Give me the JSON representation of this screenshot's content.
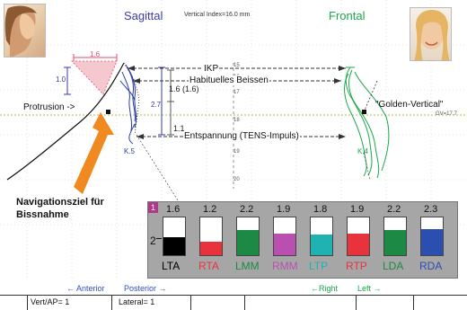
{
  "header": {
    "sagittal_label": "Sagittal",
    "frontal_label": "Frontal",
    "vertical_index": "Vertical Index=16.0 mm"
  },
  "measurements": {
    "top_width": "1.6",
    "left_height": "1.0",
    "mid_height": "2.7",
    "right_height_1": "1.6 (1.6)",
    "right_height_2": "1.1"
  },
  "annotations": {
    "ikp": "IKP",
    "habit": "Habituelles Beissen",
    "entspannung": "Entspannung (TENS-Impuls)",
    "protrusion": "Protrusion ->",
    "golden_vertical": "\"Golden-Vertical\"",
    "gv_value": "GV=17.7",
    "k5": "K.5",
    "k4": "K.4",
    "nav_target": "Navigationsziel für Bissnahme"
  },
  "scale_ticks": [
    "15",
    "16",
    "17",
    "18",
    "19",
    "20"
  ],
  "panel": {
    "index": "1",
    "axis_mark": "2",
    "muscles": [
      {
        "label": "LTA",
        "value": "1.6",
        "fill": 0.48,
        "color": "#000000",
        "text_color": "#000000"
      },
      {
        "label": "RTA",
        "value": "1.2",
        "fill": 0.36,
        "color": "#e8323c",
        "text_color": "#e8323c"
      },
      {
        "label": "LMM",
        "value": "2.2",
        "fill": 0.66,
        "color": "#1c8a45",
        "text_color": "#1c8a45"
      },
      {
        "label": "RMM",
        "value": "1.9",
        "fill": 0.57,
        "color": "#b94fb0",
        "text_color": "#b94fb0"
      },
      {
        "label": "LTP",
        "value": "1.8",
        "fill": 0.54,
        "color": "#1fb2b0",
        "text_color": "#1fb2b0"
      },
      {
        "label": "RTP",
        "value": "1.9",
        "fill": 0.57,
        "color": "#e8323c",
        "text_color": "#e8323c"
      },
      {
        "label": "LDA",
        "value": "2.2",
        "fill": 0.66,
        "color": "#1c8a45",
        "text_color": "#1c8a45"
      },
      {
        "label": "RDA",
        "value": "2.3",
        "fill": 0.69,
        "color": "#2a4fb0",
        "text_color": "#2a4fb0"
      }
    ]
  },
  "footer": {
    "anterior": "← Anterior",
    "posterior": "Posterior →",
    "right": "←Right",
    "left": "Left →",
    "vert_ap": "Vert/AP= 1",
    "lateral": "Lateral= 1"
  },
  "colors": {
    "sagittal": "#3a3aa8",
    "frontal": "#1aa84a",
    "pink": "#e84a6a",
    "panel_bg": "#a6a6a6",
    "index_bg": "#b03a8a",
    "footer_blue": "#3050c0",
    "footer_green": "#1aa84a",
    "arrow": "#f08a20"
  }
}
